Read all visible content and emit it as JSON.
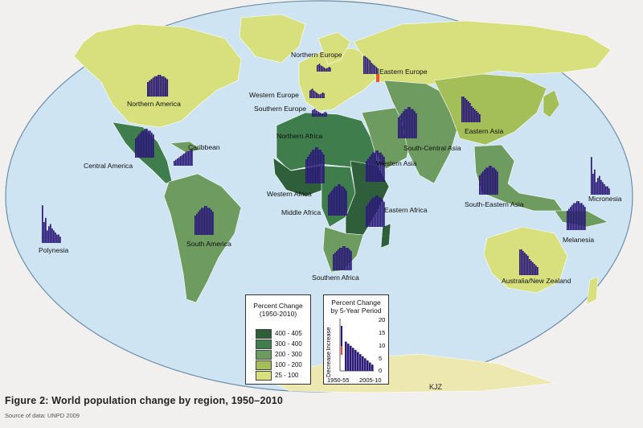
{
  "caption": "Figure 2: World population change by region, 1950–2010",
  "source": "Source of data: UNPD 2009",
  "cartographer": "KJZ",
  "legend_percent": {
    "title_line1": "Percent Change",
    "title_line2": "(1950-2010)",
    "classes": [
      {
        "label": "400 - 405",
        "color": "#2e5e3a"
      },
      {
        "label": "300 - 400",
        "color": "#3f7d4c"
      },
      {
        "label": "200 - 300",
        "color": "#6e9c60"
      },
      {
        "label": "100 - 200",
        "color": "#a4bf58"
      },
      {
        "label": "25 - 100",
        "color": "#d8e07e"
      }
    ]
  },
  "legend_period": {
    "title_line1": "Percent Change",
    "title_line2": "by 5-Year Period",
    "increase": "Increase",
    "decrease": "Decrease",
    "ticks": [
      "20",
      "15",
      "10",
      "5",
      "0"
    ],
    "x_start": "1950-55",
    "x_end": "2005-10"
  },
  "bar_color": "#2c1a78",
  "regions": {
    "northern_america": "Northern America",
    "central_america": "Central America",
    "caribbean": "Caribbean",
    "south_america": "South America",
    "polynesia": "Polynesia",
    "northern_europe": "Northern Europe",
    "western_europe": "Western Europe",
    "southern_europe": "Southern Europe",
    "eastern_europe": "Eastern Europe",
    "northern_africa": "Northern Africa",
    "western_africa": "Western Africa",
    "middle_africa": "Middle Africa",
    "eastern_africa": "Eastern Africa",
    "southern_africa": "Southern Africa",
    "western_asia": "Western Asia",
    "south_central_asia": "South-Central Asia",
    "eastern_asia": "Eastern Asia",
    "south_eastern_asia": "South-Eastern Asia",
    "micronesia": "Micronesia",
    "melanesia": "Melanesia",
    "australia_nz": "Australia/New Zealand"
  }
}
